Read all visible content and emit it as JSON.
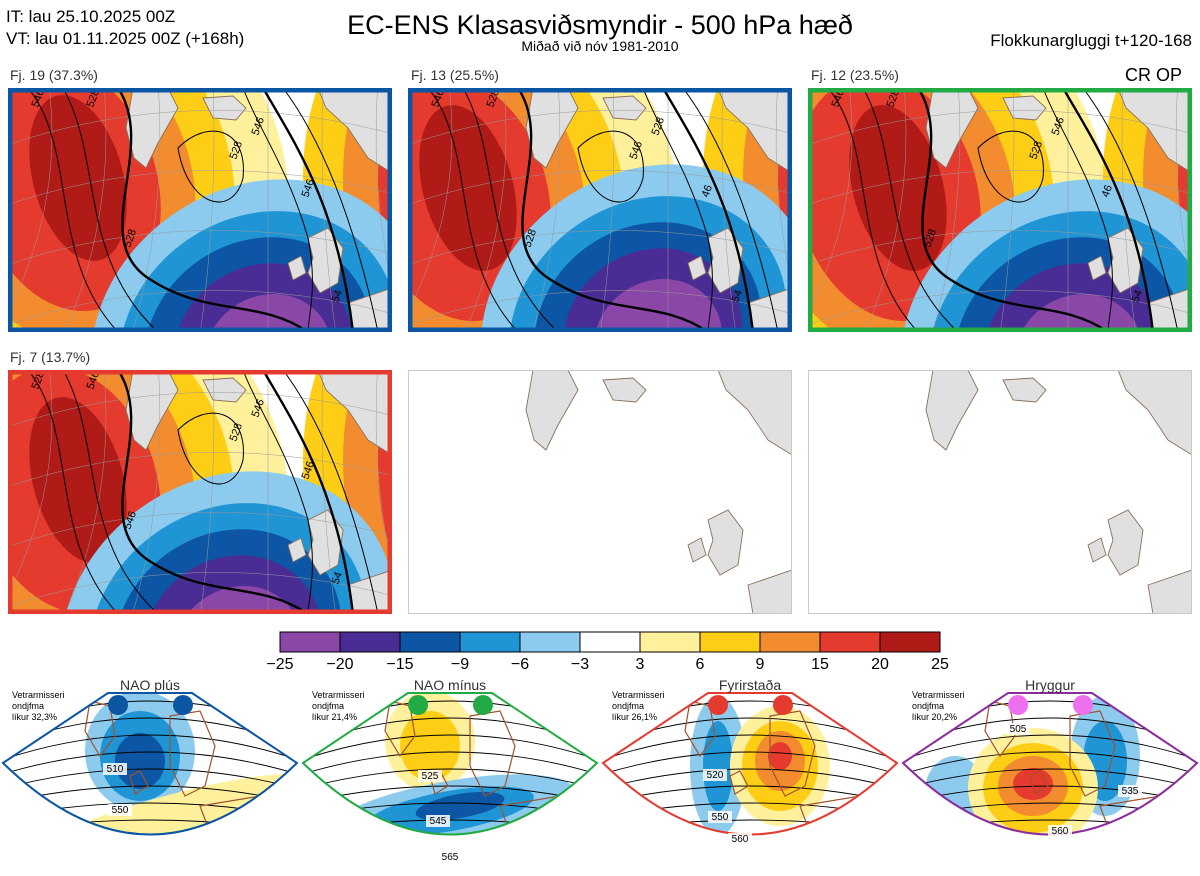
{
  "header": {
    "it_line": "IT: lau 25.10.2025 00Z",
    "vt_line": "VT: lau 01.11.2025 00Z  (+168h)",
    "title": "EC-ENS Klasasviðsmyndir - 500 hPa hæð",
    "subtitle": "Miðað við nóv 1981-2010",
    "window": "Flokkunargluggi t+120-168",
    "cr_op": "CR OP"
  },
  "clusters": [
    {
      "label": "Fj. 19 (37.3%)",
      "frame_color": "#0b56a3",
      "contours": [
        "546",
        "528",
        "528",
        "546",
        "528",
        "546",
        "54"
      ]
    },
    {
      "label": "Fj. 13 (25.5%)",
      "frame_color": "#0b56a3",
      "contours": [
        "546",
        "528",
        "528",
        "528",
        "546",
        "46",
        "54"
      ]
    },
    {
      "label": "Fj. 12 (23.5%)",
      "frame_color": "#22aa44",
      "contours": [
        "546",
        "528",
        "528",
        "546",
        "528",
        "46",
        "54"
      ]
    },
    {
      "label": "Fj. 7 (13.7%)",
      "frame_color": "#e53a2e",
      "contours": [
        "528",
        "546",
        "546",
        "546",
        "528",
        "546",
        "54"
      ]
    },
    {
      "label": "",
      "frame_color": "#c8c8c8",
      "contours": []
    },
    {
      "label": "",
      "frame_color": "#c8c8c8",
      "contours": []
    }
  ],
  "colorbar": {
    "ticks": [
      "−25",
      "−20",
      "−15",
      "−9",
      "−6",
      "−3",
      "3",
      "6",
      "9",
      "15",
      "20",
      "25"
    ],
    "colors": [
      "#8a47a8",
      "#4a2d94",
      "#0d56a5",
      "#1f95d6",
      "#8ccaee",
      "#ffffff",
      "#fff19c",
      "#fdce15",
      "#f38c2e",
      "#e53a2e",
      "#b01a17"
    ]
  },
  "regimes": [
    {
      "name": "NAO plús",
      "season_label": "Vetrarmisseri",
      "freq_label": "ondjfma",
      "prob_label": "líkur 32,3%",
      "color": "#0b56a3",
      "dot_color": "#0b56a3",
      "contours": [
        "510",
        "550"
      ]
    },
    {
      "name": "NAO mínus",
      "season_label": "Vetrarmisseri",
      "freq_label": "ondjfma",
      "prob_label": "líkur 21,4%",
      "color": "#22aa44",
      "dot_color": "#22aa44",
      "contours": [
        "525",
        "545",
        "565"
      ]
    },
    {
      "name": "Fyrirstaða",
      "season_label": "Vetrarmisseri",
      "freq_label": "ondjfma",
      "prob_label": "líkur 26,1%",
      "color": "#e53a2e",
      "dot_color": "#e53a2e",
      "contours": [
        "520",
        "550",
        "560"
      ]
    },
    {
      "name": "Hryggur",
      "season_label": "Vetrarmisseri",
      "freq_label": "ondjfma",
      "prob_label": "líkur 20,2%",
      "color": "#8a2c9c",
      "dot_color": "#ee70ee",
      "contours": [
        "505",
        "535",
        "560"
      ]
    }
  ]
}
